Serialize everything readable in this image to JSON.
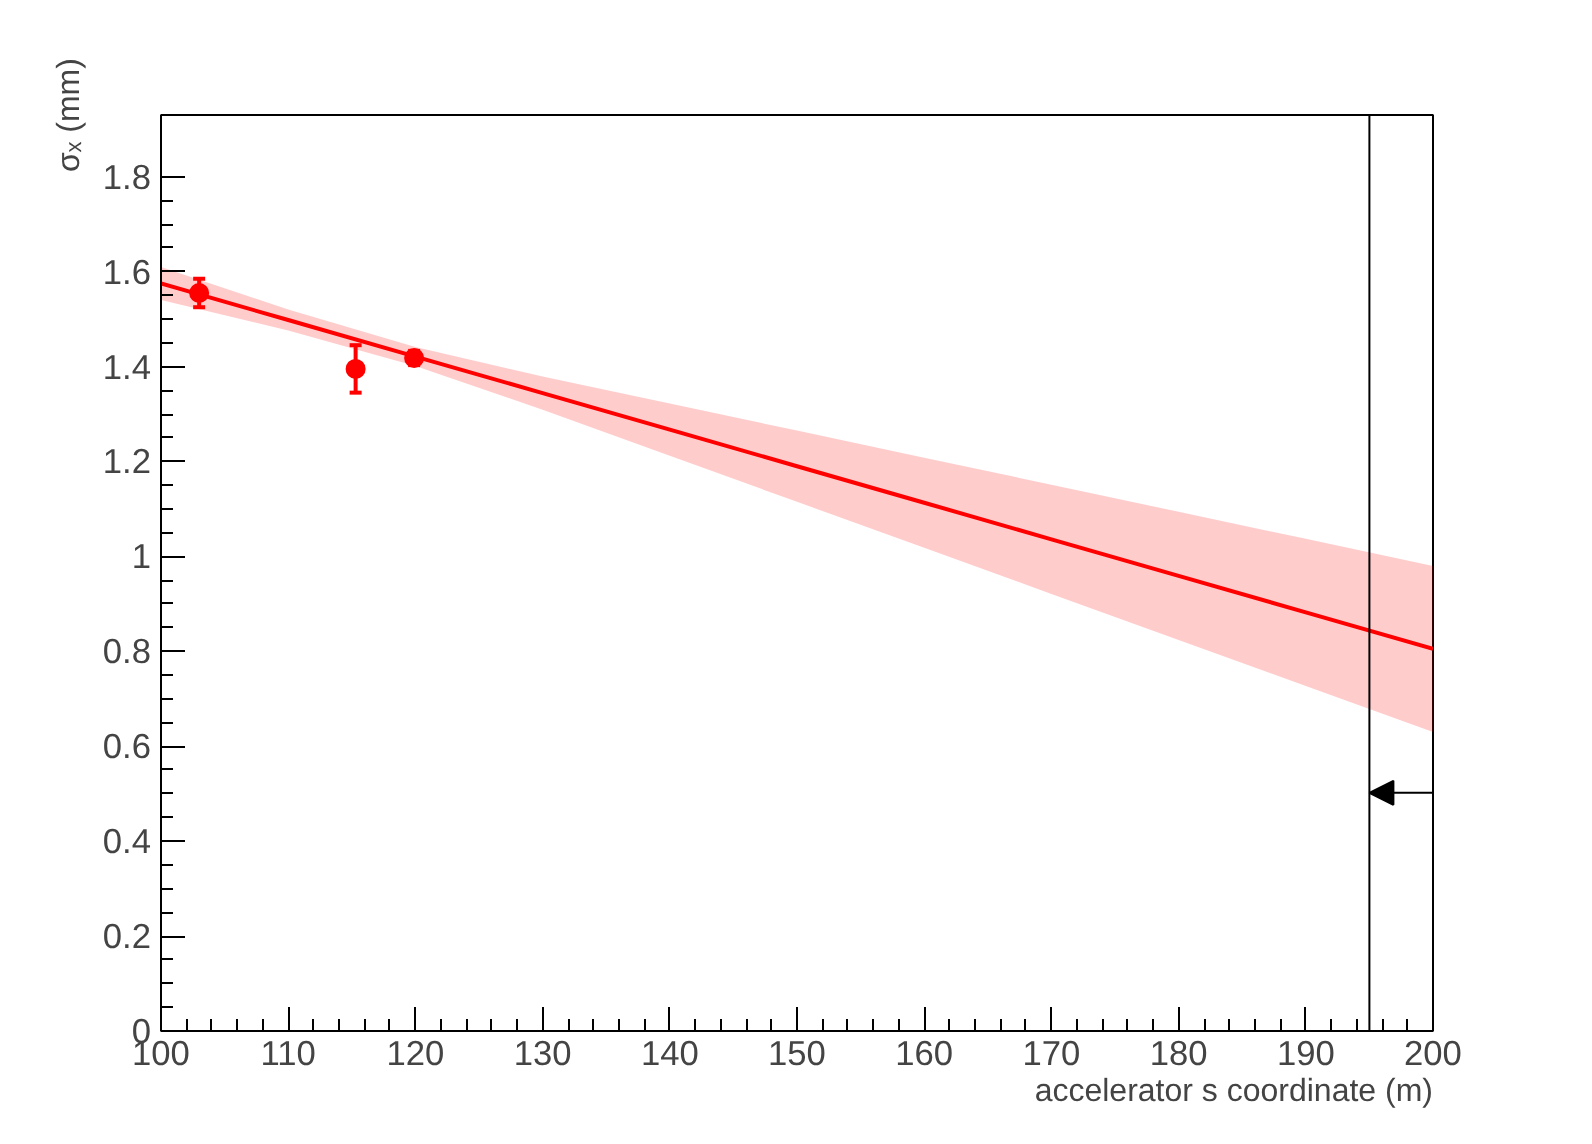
{
  "chart_data": {
    "type": "line",
    "xlabel": "accelerator s coordinate (m)",
    "ylabel": "σₓ (mm)",
    "xlim": [
      100,
      200
    ],
    "ylim": [
      0,
      1.93
    ],
    "xticks": [
      100,
      110,
      120,
      130,
      140,
      150,
      160,
      170,
      180,
      190,
      200
    ],
    "yticks": [
      0,
      0.2,
      0.4,
      0.6,
      0.8,
      {
        "value": 1,
        "label": "1"
      },
      1.2,
      1.4,
      1.6,
      1.8
    ],
    "grid": false,
    "series": [
      {
        "color": "#ff0000",
        "x": [
          100,
          110,
          120,
          130,
          140,
          150,
          160,
          170,
          180,
          190,
          200
        ],
        "values": [
          1.575,
          1.498,
          1.421,
          1.344,
          1.267,
          1.19,
          1.113,
          1.036,
          0.959,
          0.882,
          0.805
        ],
        "lower": [
          1.54,
          1.476,
          1.401,
          1.309,
          1.212,
          1.115,
          1.018,
          0.921,
          0.824,
          0.727,
          0.63
        ],
        "upper": [
          1.61,
          1.52,
          1.441,
          1.379,
          1.322,
          1.265,
          1.208,
          1.151,
          1.094,
          1.037,
          0.98
        ]
      },
      {
        "type": "scatter",
        "color": "#ff0000",
        "marker": "circle",
        "x": [
          103,
          115.3,
          119.9
        ],
        "values": [
          1.555,
          1.395,
          1.418
        ],
        "errors": [
          0.03,
          0.05,
          0.015
        ]
      }
    ],
    "ref_lines": [
      {
        "axis": "x",
        "value": 195,
        "color": "#000000"
      }
    ]
  }
}
